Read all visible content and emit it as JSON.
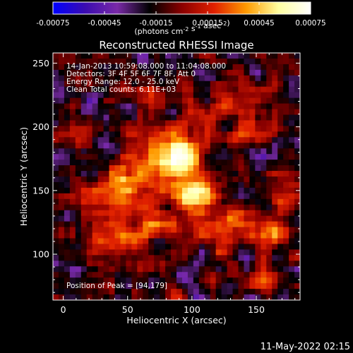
{
  "chart_data": {
    "type": "heatmap",
    "title": "Reconstructed RHESSI Image",
    "colorbar": {
      "ticks": [
        "-0.00075",
        "-0.00045",
        "-0.00015",
        "0.00015",
        "0.00045",
        "0.00075"
      ],
      "range": [
        -0.00075,
        0.00075
      ],
      "unit_text": "(photons cm  s  asec )",
      "superscripts": [
        "-2",
        "-1",
        "-2"
      ]
    },
    "info_lines": [
      "14-Jan-2013 10:59:08.000 to 11:04:08.000",
      "Detectors: 3F 4F 5F 6F 7F 8F, Att 0",
      "Energy Range: 12.0 - 25.0 keV",
      "Clean     Total counts: 6.11E+03"
    ],
    "peak_text": "Position of Peak = [94,179]",
    "peak": {
      "x": 94,
      "y": 179
    },
    "xlabel": "Heliocentric X (arcsec)",
    "ylabel": "Heliocentric Y (arcsec)",
    "xlim": [
      -8,
      184
    ],
    "ylim": [
      64,
      258
    ],
    "x_ticks": [
      0,
      50,
      100,
      150
    ],
    "y_ticks": [
      100,
      150,
      200,
      250
    ],
    "colormap": [
      "#0000ff",
      "#3b0cb0",
      "#7a2aa8",
      "#000000",
      "#8a0000",
      "#e02000",
      "#ff9a00",
      "#ffffa0",
      "#ffffff"
    ],
    "hotspots": [
      {
        "x": 94,
        "y": 179,
        "amp": 0.00075,
        "sx": 11,
        "sy": 12
      },
      {
        "x": 104,
        "y": 148,
        "amp": 0.00068,
        "sx": 12,
        "sy": 11
      },
      {
        "x": 68,
        "y": 180,
        "amp": 0.00042,
        "sx": 14,
        "sy": 14
      },
      {
        "x": 50,
        "y": 150,
        "amp": 0.00045,
        "sx": 16,
        "sy": 14
      },
      {
        "x": 22,
        "y": 142,
        "amp": 0.00035,
        "sx": 13,
        "sy": 11
      },
      {
        "x": 38,
        "y": 112,
        "amp": 0.00035,
        "sx": 15,
        "sy": 12
      },
      {
        "x": 78,
        "y": 118,
        "amp": 0.0004,
        "sx": 14,
        "sy": 10
      },
      {
        "x": 122,
        "y": 120,
        "amp": 0.00033,
        "sx": 14,
        "sy": 11
      },
      {
        "x": 160,
        "y": 118,
        "amp": 0.00033,
        "sx": 12,
        "sy": 14
      },
      {
        "x": 152,
        "y": 196,
        "amp": 0.0003,
        "sx": 11,
        "sy": 9
      },
      {
        "x": 128,
        "y": 218,
        "amp": 0.0003,
        "sx": 18,
        "sy": 9
      },
      {
        "x": 68,
        "y": 222,
        "amp": 0.00027,
        "sx": 11,
        "sy": 9
      },
      {
        "x": 175,
        "y": 148,
        "amp": 0.0003,
        "sx": 9,
        "sy": 11
      },
      {
        "x": 10,
        "y": 198,
        "amp": 0.00018,
        "sx": 9,
        "sy": 9
      },
      {
        "x": 150,
        "y": 80,
        "amp": 0.00025,
        "sx": 14,
        "sy": 7
      }
    ]
  },
  "footer": {
    "date": "11-May-2022 02:15"
  }
}
